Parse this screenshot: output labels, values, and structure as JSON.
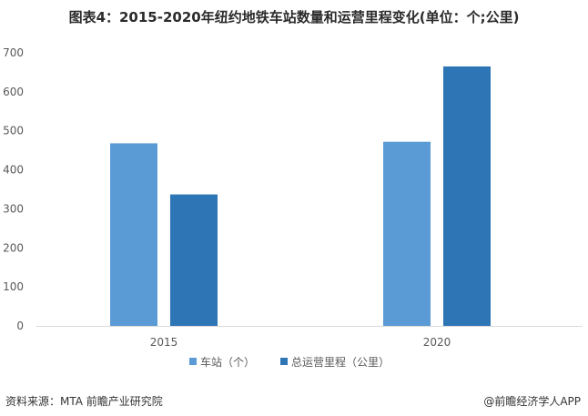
{
  "page": {
    "title": "图表4：2015-2020年纽约地铁车站数量和运营里程变化(单位：个;公里)",
    "source": "资料来源：MTA 前瞻产业研究院",
    "brand": "@前瞻经济学人APP"
  },
  "chart_data": {
    "type": "bar",
    "title": "图表4：2015-2020年纽约地铁车站数量和运营里程变化(单位：个;公里)",
    "categories": [
      "2015",
      "2020"
    ],
    "series": [
      {
        "name": "车站（个）",
        "color": "#5b9bd5",
        "values": [
          468,
          472
        ]
      },
      {
        "name": "总运营里程（公里）",
        "color": "#2e75b6",
        "values": [
          337,
          665
        ]
      }
    ],
    "yticks": [
      "0",
      "100",
      "200",
      "300",
      "400",
      "500",
      "600",
      "700"
    ],
    "ylim": [
      0,
      700
    ],
    "grid": false,
    "legend": "bottom"
  }
}
